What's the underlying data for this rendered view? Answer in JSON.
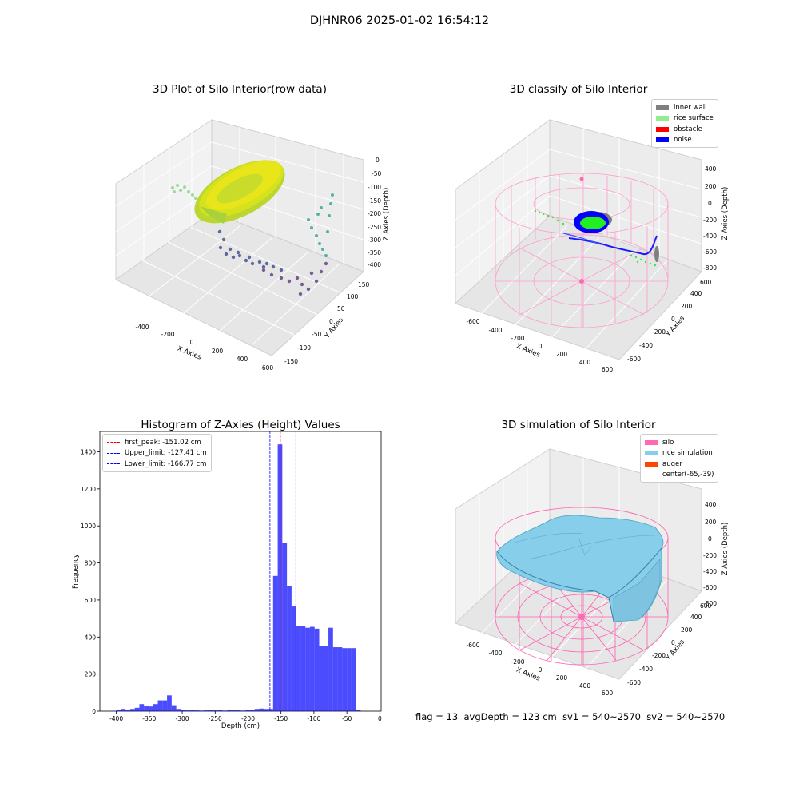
{
  "figure": {
    "title": "DJHNR06 2025-01-02 16:54:12"
  },
  "panels": {
    "raw": {
      "title": "3D Plot of Silo Interior(row data)",
      "xlabel": "X Axies",
      "ylabel": "Y Axies",
      "zlabel": "Z Axies (Depth)",
      "xticks": [
        "-400",
        "-200",
        "0",
        "200",
        "400",
        "600"
      ],
      "yticks": [
        "-150",
        "-100",
        "-50",
        "0",
        "50",
        "100",
        "150"
      ],
      "zticks": [
        "0",
        "-50",
        "-100",
        "-150",
        "-200",
        "-250",
        "-300",
        "-350",
        "-400"
      ]
    },
    "classify": {
      "title": "3D classify of Silo Interior",
      "xlabel": "X Axies",
      "ylabel": "Y Axies",
      "zlabel": "Z Axies (Depth)",
      "xticks": [
        "-600",
        "-400",
        "-200",
        "0",
        "200",
        "400",
        "600"
      ],
      "yticks": [
        "-600",
        "-400",
        "-200",
        "0",
        "200",
        "400",
        "600"
      ],
      "zticks": [
        "400",
        "200",
        "0",
        "-200",
        "-400",
        "-600",
        "-800"
      ],
      "legend": [
        {
          "label": "inner wall",
          "color": "#808080"
        },
        {
          "label": "rice surface",
          "color": "#90ee90"
        },
        {
          "label": "obstacle",
          "color": "#ff0000"
        },
        {
          "label": "noise",
          "color": "#0000ff"
        }
      ]
    },
    "simulation": {
      "title": "3D simulation of Silo Interior",
      "xlabel": "X Axies",
      "ylabel": "Y Axies",
      "zlabel": "Z Axies (Depth)",
      "xticks": [
        "-600",
        "-400",
        "-200",
        "0",
        "200",
        "400",
        "600"
      ],
      "yticks": [
        "-600",
        "-400",
        "-200",
        "0",
        "200",
        "400",
        "600"
      ],
      "zticks": [
        "400",
        "200",
        "0",
        "-200",
        "-400",
        "-600",
        "-800"
      ],
      "legend": [
        {
          "label": "silo",
          "color": "#ff69b4"
        },
        {
          "label": "rice simulation",
          "color": "#87ceeb"
        },
        {
          "label": "auger",
          "color": "#ff4500"
        },
        {
          "label": "center(-65,-39)",
          "color": ""
        }
      ]
    }
  },
  "chart_data": [
    {
      "type": "bar",
      "title": "Histogram of Z-Axies (Height) Values",
      "xlabel": "Depth (cm)",
      "ylabel": "Frequency",
      "xlim": [
        -425,
        2
      ],
      "ylim": [
        0,
        1510
      ],
      "bar_color": "#0000ff",
      "bin_width": 7,
      "xticks": [
        -400,
        -350,
        -300,
        -250,
        -200,
        -150,
        -100,
        -50,
        0
      ],
      "yticks": [
        0,
        200,
        400,
        600,
        800,
        1000,
        1200,
        1400
      ],
      "bins": [
        {
          "x": -407,
          "y": 2
        },
        {
          "x": -400,
          "y": 8
        },
        {
          "x": -393,
          "y": 12
        },
        {
          "x": -386,
          "y": 5
        },
        {
          "x": -379,
          "y": 12
        },
        {
          "x": -372,
          "y": 18
        },
        {
          "x": -365,
          "y": 38
        },
        {
          "x": -358,
          "y": 30
        },
        {
          "x": -351,
          "y": 25
        },
        {
          "x": -344,
          "y": 38
        },
        {
          "x": -337,
          "y": 58
        },
        {
          "x": -330,
          "y": 58
        },
        {
          "x": -323,
          "y": 85
        },
        {
          "x": -316,
          "y": 32
        },
        {
          "x": -309,
          "y": 12
        },
        {
          "x": -302,
          "y": 6
        },
        {
          "x": -295,
          "y": 4
        },
        {
          "x": -288,
          "y": 5
        },
        {
          "x": -281,
          "y": 4
        },
        {
          "x": -274,
          "y": 3
        },
        {
          "x": -267,
          "y": 4
        },
        {
          "x": -260,
          "y": 5
        },
        {
          "x": -253,
          "y": 4
        },
        {
          "x": -246,
          "y": 8
        },
        {
          "x": -239,
          "y": 3
        },
        {
          "x": -232,
          "y": 6
        },
        {
          "x": -225,
          "y": 8
        },
        {
          "x": -218,
          "y": 5
        },
        {
          "x": -211,
          "y": 3
        },
        {
          "x": -204,
          "y": 5
        },
        {
          "x": -197,
          "y": 8
        },
        {
          "x": -190,
          "y": 12
        },
        {
          "x": -183,
          "y": 14
        },
        {
          "x": -176,
          "y": 12
        },
        {
          "x": -169,
          "y": 12
        },
        {
          "x": -162,
          "y": 730
        },
        {
          "x": -155,
          "y": 1440
        },
        {
          "x": -148,
          "y": 910
        },
        {
          "x": -141,
          "y": 675
        },
        {
          "x": -134,
          "y": 565
        },
        {
          "x": -127,
          "y": 460
        },
        {
          "x": -120,
          "y": 458
        },
        {
          "x": -113,
          "y": 450
        },
        {
          "x": -106,
          "y": 455
        },
        {
          "x": -99,
          "y": 445
        },
        {
          "x": -92,
          "y": 350
        },
        {
          "x": -85,
          "y": 350
        },
        {
          "x": -78,
          "y": 450
        },
        {
          "x": -71,
          "y": 345
        },
        {
          "x": -64,
          "y": 345
        },
        {
          "x": -57,
          "y": 340
        },
        {
          "x": -50,
          "y": 340
        },
        {
          "x": -43,
          "y": 340
        },
        {
          "x": -36,
          "y": 5
        }
      ],
      "lines": [
        {
          "label": "first_peak: -151.02 cm",
          "x": -151.02,
          "color": "#ff0000"
        },
        {
          "label": "Upper_limit: -127.41 cm",
          "x": -127.41,
          "color": "#0000ff"
        },
        {
          "label": "Lower_limit: -166.77 cm",
          "x": -166.77,
          "color": "#0000ff"
        }
      ]
    }
  ],
  "status": {
    "flag": "flag = 13",
    "avg_depth": "avgDepth = 123 cm",
    "sv1": "sv1 = 540~2570",
    "sv2": "sv2 = 540~2570"
  }
}
